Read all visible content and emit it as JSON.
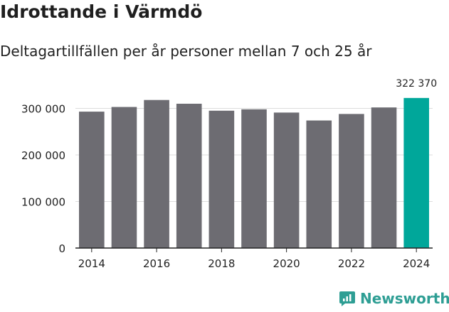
{
  "title": "Idrottande i Värmdö",
  "subtitle": "Deltagartillfällen per år personer mellan 7 och 25 år",
  "brand": {
    "name": "Newsworthy",
    "icon": "newsworthy-logo-icon"
  },
  "colors": {
    "bar": "#6d6c72",
    "highlight": "#00a79a",
    "grid": "#dddddd",
    "axis": "#222222",
    "brand": "#2e9e94"
  },
  "chart_data": {
    "type": "bar",
    "title": "Idrottande i Värmdö",
    "subtitle": "Deltagartillfällen per år personer mellan 7 och 25 år",
    "categories": [
      "2014",
      "2015",
      "2016",
      "2017",
      "2018",
      "2019",
      "2020",
      "2021",
      "2022",
      "2023",
      "2024"
    ],
    "values": [
      293000,
      303000,
      318000,
      310000,
      295000,
      298000,
      291000,
      274000,
      288000,
      302000,
      322370
    ],
    "highlight_index": 10,
    "highlight_label": "322 370",
    "xticks": [
      "2014",
      "2016",
      "2018",
      "2020",
      "2022",
      "2024"
    ],
    "yticks": [
      0,
      100000,
      200000,
      300000
    ],
    "ytick_labels": [
      "0",
      "100 000",
      "200 000",
      "300 000"
    ],
    "ylim": [
      0,
      330000
    ],
    "xlabel": "",
    "ylabel": "",
    "grid": true
  }
}
